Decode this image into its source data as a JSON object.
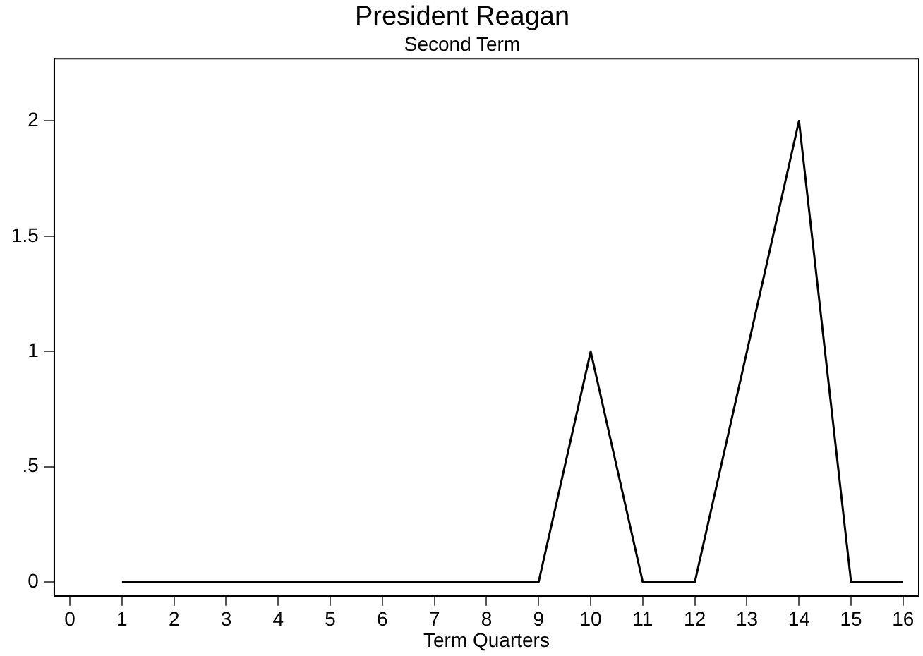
{
  "chart_data": {
    "type": "line",
    "title": "President Reagan",
    "subtitle": "Second Term",
    "xlabel": "Term Quarters",
    "x": [
      1,
      2,
      3,
      4,
      5,
      6,
      7,
      8,
      9,
      10,
      11,
      12,
      13,
      14,
      15,
      16
    ],
    "series": [
      {
        "color": "#000000",
        "values": [
          0,
          0,
          0,
          0,
          0,
          0,
          0,
          0,
          0,
          1,
          0,
          0,
          1,
          2,
          0,
          0
        ]
      }
    ],
    "xlim": [
      -0.3,
      16.3
    ],
    "xticks": [
      0,
      1,
      2,
      3,
      4,
      5,
      6,
      7,
      8,
      9,
      10,
      11,
      12,
      13,
      14,
      15,
      16
    ],
    "ylim": [
      -0.06,
      2.27
    ],
    "yticks": [
      0,
      {
        "value": 0.5,
        "label": ".5"
      },
      1,
      1.5,
      2
    ],
    "grid": false,
    "legend": false,
    "marker": "none",
    "line_style": "solid"
  }
}
